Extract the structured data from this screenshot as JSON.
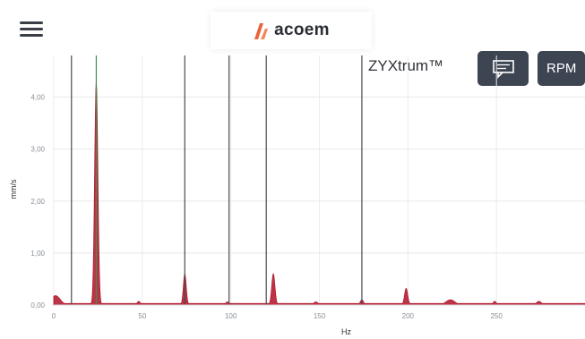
{
  "header": {
    "brand": "acoem",
    "brand_color": "#e8643a",
    "title": "ZYXtrum™",
    "menu_icon": "hamburger-menu-icon",
    "comment_icon": "comment-icon",
    "rpm_label": "RPM",
    "button_color": "#3d4552"
  },
  "chart_data": {
    "type": "area",
    "xlabel": "Hz",
    "ylabel": "mm/s",
    "xlim": [
      0,
      300
    ],
    "ylim": [
      0,
      4.8
    ],
    "x_ticks": [
      "0",
      "50",
      "100",
      "150",
      "200",
      "250"
    ],
    "x_tick_values": [
      0,
      50,
      100,
      150,
      200,
      250
    ],
    "y_ticks": [
      "0,00",
      "1,00",
      "2,00",
      "3,00",
      "4,00"
    ],
    "y_tick_values": [
      0,
      1,
      2,
      3,
      4
    ],
    "grid": true,
    "fill_color": "#b3182e",
    "cursor_color": "#4a4a4a",
    "cursor_lines_x": [
      10,
      74,
      99,
      120,
      174
    ],
    "highlight_line_x": 24,
    "highlight_line_color": "#3d8f4f",
    "baseline": 0.03,
    "peaks": [
      {
        "x": 1,
        "y": 0.18,
        "w": 2.6
      },
      {
        "x": 24,
        "y": 4.3,
        "w": 0.9
      },
      {
        "x": 48,
        "y": 0.07,
        "w": 0.9
      },
      {
        "x": 74,
        "y": 0.6,
        "w": 0.8
      },
      {
        "x": 98,
        "y": 0.06,
        "w": 0.9
      },
      {
        "x": 124,
        "y": 0.6,
        "w": 0.9
      },
      {
        "x": 135,
        "y": 0.03,
        "w": 0.8
      },
      {
        "x": 148,
        "y": 0.06,
        "w": 1.2
      },
      {
        "x": 174,
        "y": 0.1,
        "w": 0.9
      },
      {
        "x": 199,
        "y": 0.32,
        "w": 0.9
      },
      {
        "x": 224,
        "y": 0.1,
        "w": 2.5
      },
      {
        "x": 249,
        "y": 0.07,
        "w": 0.9
      },
      {
        "x": 274,
        "y": 0.07,
        "w": 1.4
      }
    ]
  }
}
